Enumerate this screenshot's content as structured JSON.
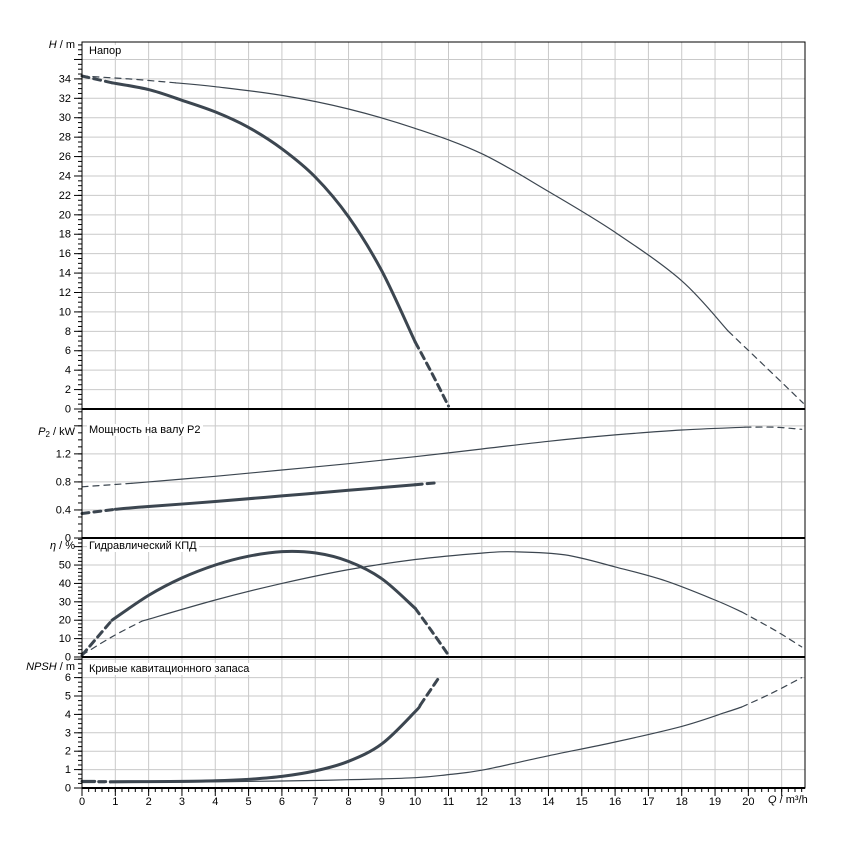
{
  "panel": {
    "background": "#ffffff"
  },
  "colors": {
    "curve": "#3c4650",
    "grid": "#c9c9c9",
    "axis": "#000000",
    "text": "#000000"
  },
  "x_axis": {
    "label": "Q / m³/h",
    "label_var": "Q",
    "label_unit": " / m³/h",
    "min": 0,
    "max": 21.7,
    "major_step": 1,
    "minor_step": 0.2,
    "tick_labels": [
      [
        0,
        "0"
      ],
      [
        1,
        "1"
      ],
      [
        2,
        "2"
      ],
      [
        3,
        "3"
      ],
      [
        4,
        "4"
      ],
      [
        5,
        "5"
      ],
      [
        6,
        "6"
      ],
      [
        7,
        "7"
      ],
      [
        8,
        "8"
      ],
      [
        9,
        "9"
      ],
      [
        10,
        "10"
      ],
      [
        11,
        "11"
      ],
      [
        12,
        "12"
      ],
      [
        13,
        "13"
      ],
      [
        14,
        "14"
      ],
      [
        15,
        "15"
      ],
      [
        16,
        "16"
      ],
      [
        17,
        "17"
      ],
      [
        18,
        "18"
      ],
      [
        19,
        "19"
      ],
      [
        20,
        "20"
      ]
    ]
  },
  "chart_data": [
    {
      "type": "line",
      "title": "Напор",
      "ylabel": "H / m",
      "ylabel_var": "H",
      "ylabel_sub": "",
      "ylabel_unit": " / m",
      "xlabel": "Q / m³/h",
      "ylim": [
        0,
        37.8
      ],
      "ymajor_step": 2,
      "yminor_step": 0.5,
      "grid": true,
      "ytick_labels": [
        [
          0,
          "0"
        ],
        [
          2,
          "2"
        ],
        [
          4,
          "4"
        ],
        [
          6,
          "6"
        ],
        [
          8,
          "8"
        ],
        [
          10,
          "10"
        ],
        [
          12,
          "12"
        ],
        [
          14,
          "14"
        ],
        [
          16,
          "16"
        ],
        [
          18,
          "18"
        ],
        [
          20,
          "20"
        ],
        [
          22,
          "22"
        ],
        [
          24,
          "24"
        ],
        [
          26,
          "26"
        ],
        [
          28,
          "28"
        ],
        [
          30,
          "30"
        ],
        [
          32,
          "32"
        ],
        [
          34,
          "34"
        ]
      ],
      "series": [
        {
          "name": "pump-curve-selected",
          "style": "thick",
          "segments": [
            {
              "dash": true,
              "points": [
                [
                  0,
                  34.3
                ],
                [
                  0.9,
                  33.6
                ]
              ]
            },
            {
              "dash": false,
              "points": [
                [
                  0.9,
                  33.6
                ],
                [
                  2,
                  32.9
                ],
                [
                  3,
                  31.8
                ],
                [
                  4,
                  30.6
                ],
                [
                  5,
                  29.0
                ],
                [
                  6,
                  26.8
                ],
                [
                  7,
                  23.9
                ],
                [
                  8,
                  19.8
                ],
                [
                  9,
                  14.2
                ],
                [
                  10,
                  6.9
                ]
              ]
            },
            {
              "dash": true,
              "points": [
                [
                  10,
                  6.9
                ],
                [
                  10.5,
                  3.7
                ],
                [
                  11,
                  0.3
                ]
              ]
            }
          ]
        },
        {
          "name": "pump-curve-max",
          "style": "thin",
          "segments": [
            {
              "dash": true,
              "points": [
                [
                  0,
                  34.3
                ],
                [
                  1.4,
                  34.0
                ],
                [
                  2.8,
                  33.6
                ]
              ]
            },
            {
              "dash": false,
              "points": [
                [
                  2.8,
                  33.6
                ],
                [
                  4,
                  33.2
                ],
                [
                  6,
                  32.3
                ],
                [
                  8,
                  30.9
                ],
                [
                  10,
                  28.9
                ],
                [
                  12,
                  26.3
                ],
                [
                  14,
                  22.4
                ],
                [
                  16,
                  18.2
                ],
                [
                  18,
                  13.2
                ],
                [
                  19.4,
                  8.0
                ]
              ]
            },
            {
              "dash": true,
              "points": [
                [
                  19.4,
                  8.0
                ],
                [
                  20.5,
                  4.4
                ],
                [
                  21.65,
                  0.6
                ]
              ]
            }
          ]
        }
      ]
    },
    {
      "type": "line",
      "title": "Мощность на валу P2",
      "ylabel": "P2 / kW",
      "ylabel_var": "P",
      "ylabel_sub": "2",
      "ylabel_unit": " / kW",
      "xlabel": "Q / m³/h",
      "ylim": [
        0,
        1.84
      ],
      "ymajor_step": 0.4,
      "yminor_step": 0.1,
      "grid": true,
      "ytick_labels": [
        [
          0,
          "0"
        ],
        [
          0.4,
          "0.4"
        ],
        [
          0.8,
          "0.8"
        ],
        [
          1.2,
          "1.2"
        ]
      ],
      "series": [
        {
          "name": "pump-curve-selected",
          "style": "thick",
          "segments": [
            {
              "dash": true,
              "points": [
                [
                  0,
                  0.35
                ],
                [
                  1,
                  0.41
                ]
              ]
            },
            {
              "dash": false,
              "points": [
                [
                  1,
                  0.41
                ],
                [
                  2,
                  0.45
                ],
                [
                  4,
                  0.52
                ],
                [
                  6,
                  0.6
                ],
                [
                  8,
                  0.68
                ],
                [
                  9,
                  0.72
                ],
                [
                  10,
                  0.76
                ]
              ]
            },
            {
              "dash": true,
              "points": [
                [
                  10,
                  0.76
                ],
                [
                  10.7,
                  0.79
                ]
              ]
            }
          ]
        },
        {
          "name": "pump-curve-max",
          "style": "thin",
          "segments": [
            {
              "dash": true,
              "points": [
                [
                  0,
                  0.73
                ],
                [
                  1.5,
                  0.78
                ]
              ]
            },
            {
              "dash": false,
              "points": [
                [
                  1.5,
                  0.78
                ],
                [
                  4,
                  0.88
                ],
                [
                  6,
                  0.97
                ],
                [
                  8,
                  1.06
                ],
                [
                  10,
                  1.16
                ],
                [
                  12,
                  1.27
                ],
                [
                  14,
                  1.38
                ],
                [
                  16,
                  1.47
                ],
                [
                  18,
                  1.54
                ],
                [
                  19.9,
                  1.58
                ]
              ]
            },
            {
              "dash": true,
              "points": [
                [
                  19.9,
                  1.58
                ],
                [
                  20.8,
                  1.58
                ],
                [
                  21.6,
                  1.55
                ]
              ]
            }
          ]
        }
      ]
    },
    {
      "type": "line",
      "title": "Гидравлический КПД",
      "ylabel": "η / %",
      "ylabel_var": "η",
      "ylabel_sub": "",
      "ylabel_unit": " / %",
      "xlabel": "Q / m³/h",
      "ylim": [
        0,
        64.7
      ],
      "ymajor_step": 10,
      "yminor_step": 2,
      "grid": true,
      "ytick_labels": [
        [
          0,
          "0"
        ],
        [
          10,
          "10"
        ],
        [
          20,
          "20"
        ],
        [
          30,
          "30"
        ],
        [
          40,
          "40"
        ],
        [
          50,
          "50"
        ]
      ],
      "series": [
        {
          "name": "pump-curve-selected",
          "style": "thick",
          "segments": [
            {
              "dash": true,
              "points": [
                [
                  0,
                  1
                ],
                [
                  0.9,
                  20
                ]
              ]
            },
            {
              "dash": false,
              "points": [
                [
                  0.9,
                  20
                ],
                [
                  2,
                  33.5
                ],
                [
                  3,
                  43
                ],
                [
                  4,
                  50
                ],
                [
                  5,
                  54.8
                ],
                [
                  6,
                  57.3
                ],
                [
                  7,
                  56.6
                ],
                [
                  8,
                  52
                ],
                [
                  9,
                  42.5
                ],
                [
                  10,
                  26.5
                ]
              ]
            },
            {
              "dash": true,
              "points": [
                [
                  10,
                  26.5
                ],
                [
                  10.5,
                  14
                ],
                [
                  11,
                  1
                ]
              ]
            }
          ]
        },
        {
          "name": "pump-curve-max",
          "style": "thin",
          "segments": [
            {
              "dash": true,
              "points": [
                [
                  0,
                  1
                ],
                [
                  0.9,
                  11
                ],
                [
                  1.8,
                  19.5
                ]
              ]
            },
            {
              "dash": false,
              "points": [
                [
                  1.8,
                  19.5
                ],
                [
                  4,
                  31
                ],
                [
                  6,
                  40
                ],
                [
                  8,
                  47.5
                ],
                [
                  10,
                  53
                ],
                [
                  12,
                  56.5
                ],
                [
                  13,
                  57.2
                ],
                [
                  14.5,
                  55.5
                ],
                [
                  16,
                  49
                ],
                [
                  17.5,
                  41.5
                ],
                [
                  19,
                  31
                ],
                [
                  19.8,
                  24.5
                ]
              ]
            },
            {
              "dash": true,
              "points": [
                [
                  19.8,
                  24.5
                ],
                [
                  20.8,
                  14.5
                ],
                [
                  21.6,
                  5.5
                ]
              ]
            }
          ]
        }
      ]
    },
    {
      "type": "line",
      "title": "Кривые кавитационного запаса",
      "ylabel": "NPSH / m",
      "ylabel_var": "NPSH",
      "ylabel_sub": "",
      "ylabel_unit": " / m",
      "xlabel": "Q / m³/h",
      "ylim": [
        0,
        7.12
      ],
      "ymajor_step": 1,
      "yminor_step": 0.25,
      "grid": true,
      "ytick_labels": [
        [
          0,
          "0"
        ],
        [
          1,
          "1"
        ],
        [
          2,
          "2"
        ],
        [
          3,
          "3"
        ],
        [
          4,
          "4"
        ],
        [
          5,
          "5"
        ],
        [
          6,
          "6"
        ]
      ],
      "series": [
        {
          "name": "pump-curve-selected",
          "style": "thick",
          "segments": [
            {
              "dash": false,
              "points": [
                [
                  0,
                  0.36
                ],
                [
                  0.38,
                  0.36
                ]
              ]
            },
            {
              "dash": true,
              "points": [
                [
                  0.5,
                  0.35
                ],
                [
                  0.85,
                  0.34
                ]
              ]
            },
            {
              "dash": false,
              "points": [
                [
                  0.85,
                  0.34
                ],
                [
                  2,
                  0.35
                ],
                [
                  3,
                  0.36
                ],
                [
                  4,
                  0.39
                ],
                [
                  5,
                  0.47
                ],
                [
                  6,
                  0.63
                ],
                [
                  7,
                  0.93
                ],
                [
                  8,
                  1.45
                ],
                [
                  9,
                  2.4
                ],
                [
                  10,
                  4.15
                ],
                [
                  10.15,
                  4.5
                ]
              ]
            },
            {
              "dash": true,
              "points": [
                [
                  10.15,
                  4.5
                ],
                [
                  10.45,
                  5.3
                ],
                [
                  10.75,
                  6.1
                ]
              ]
            }
          ]
        },
        {
          "name": "pump-curve-max",
          "style": "thin",
          "segments": [
            {
              "dash": false,
              "points": [
                [
                  0,
                  0.3
                ],
                [
                  0.38,
                  0.3
                ]
              ]
            },
            {
              "dash": true,
              "points": [
                [
                  0.5,
                  0.29
                ],
                [
                  0.85,
                  0.29
                ]
              ]
            },
            {
              "dash": false,
              "points": [
                [
                  0.85,
                  0.29
                ],
                [
                  3,
                  0.32
                ],
                [
                  6,
                  0.38
                ],
                [
                  8,
                  0.45
                ],
                [
                  10,
                  0.56
                ],
                [
                  11,
                  0.73
                ],
                [
                  12,
                  0.97
                ],
                [
                  14,
                  1.75
                ],
                [
                  16,
                  2.5
                ],
                [
                  18,
                  3.35
                ],
                [
                  19.3,
                  4.1
                ],
                [
                  19.8,
                  4.4
                ]
              ]
            },
            {
              "dash": true,
              "points": [
                [
                  19.8,
                  4.4
                ],
                [
                  20.7,
                  5.15
                ],
                [
                  21.6,
                  6.0
                ]
              ]
            }
          ]
        }
      ]
    }
  ]
}
